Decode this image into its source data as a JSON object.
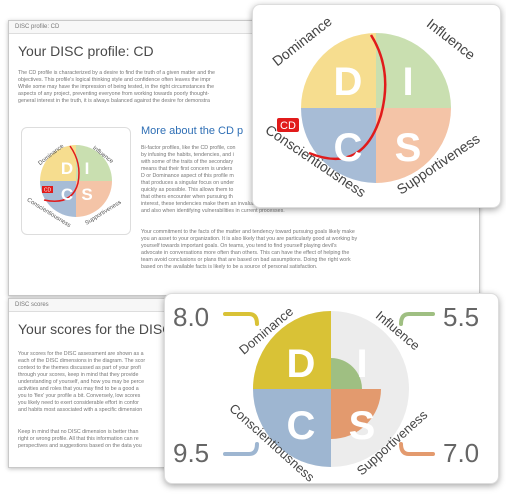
{
  "profile_panel": {
    "header": "DISC profile: CD",
    "title": "Your DISC profile: CD",
    "intro": "The CD profile is characterized by a desire to find the truth of a given matter and the\nobjectives. This profile's logical thinking style and confidence often leaves the impr\nWhile some may have the impression of being tested, in the right circumstances the\naspects of any project, preventing everyone from working towards poorly thought-\ngeneral interest in the truth, it is always balanced against the desire for demonstra",
    "more_title": "More about the CD p",
    "body1": "Bi-factor profiles, like the CD profile, con\nby infusing the habits, tendencies, and i\nwith some of the traits of the secondary\nmeans that their first concern is unders\nD or Dominance aspect of this profile m\nthat produces a singular focus on under\nquickly as possible. This allows them to\nthat others encounter when pursuing th\ninterest, these tendencies make them an invaluable asset when setting objectives in teams\nand also when identifying vulnerabilities in current processes.",
    "body2": "Your commitment to the facts of the matter and tendency toward pursuing goals likely make\nyou an asset to your organization. It is also likely that you are particularly good at working by\nyourself towards important goals. On teams, you tend to find yourself playing devil's\nadvocate in conversations more often than others. This can have the effect of helping the\nteam avoid conclusions or plans that are based on bad assumptions. Doing the right work\nbased on the available facts is likely to be a source of personal satisfaction."
  },
  "scores_panel": {
    "header": "DISC scores",
    "title": "Your scores for the DISC",
    "body1": "Your scores for the DISC assessment are shown as a\neach of the DISC dimensions in the diagram. The scor\ncontext to the themes discussed as part of your profi\nthrough your scores, keep in mind that they provide\nunderstanding of yourself, and how you may be perce\nactivities and roles that you may find to be a good a\nyou to 'flex' your profile a bit. Conversely, low scores\nyou likely need to exert considerable effort in confor\nand habits most associated with a specific dimension",
    "body2": "Keep in mind that no DISC dimension is better than\nright or wrong profile. All that this information can re\nperspectives and suggestions based on the data you"
  },
  "disc": {
    "letters": {
      "d": "D",
      "i": "I",
      "c": "C",
      "s": "S"
    },
    "labels": {
      "dominance": "Dominance",
      "influence": "Influence",
      "conscientiousness": "Conscientiousness",
      "supportiveness": "Supportiveness"
    },
    "profile_badge": "CD",
    "colors": {
      "dominance": "#f6dd8f",
      "influence": "#c9dfb0",
      "conscientiousness": "#a7bcd6",
      "supportiveness": "#f4c4a7",
      "scores_dominance": "#d9c236",
      "scores_influence": "#9fbf82",
      "scores_conscientiousness": "#9eb6d1",
      "scores_supportiveness": "#e39a6e",
      "accent_red": "#e11b1b",
      "more_title": "#2f6fb5"
    }
  },
  "scores": {
    "dominance": "8.0",
    "influence": "5.5",
    "conscientiousness": "9.5",
    "supportiveness": "7.0"
  }
}
